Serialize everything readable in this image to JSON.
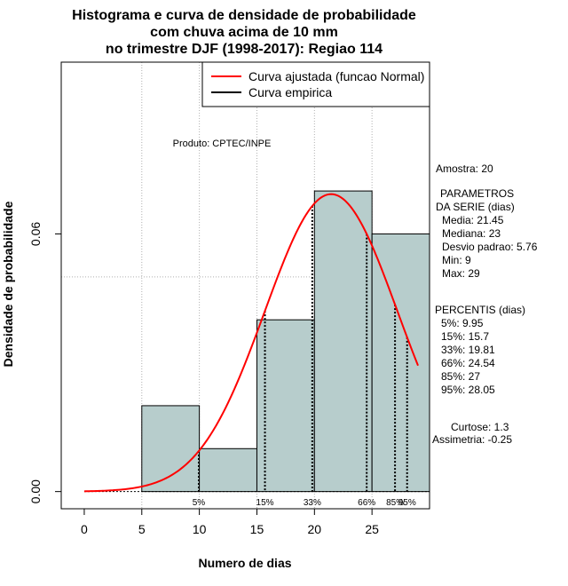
{
  "chart_data": {
    "type": "bar",
    "title_lines": [
      "Histograma e curva de densidade de probabilidade",
      "com chuva acima de 10 mm",
      "no trimestre DJF (1998-2017): Regiao 114"
    ],
    "xlabel": "Numero de dias",
    "ylabel": "Densidade de probabilidade",
    "xlim": [
      -2,
      30
    ],
    "ylim": [
      -0.004,
      0.1
    ],
    "x_ticks": [
      0,
      5,
      10,
      15,
      20,
      25
    ],
    "x_tick_labels": [
      "0",
      "5",
      "10",
      "15",
      "20",
      "25"
    ],
    "y_ticks": [
      0.0,
      0.06
    ],
    "y_tick_labels": [
      "0.00",
      "0.06"
    ],
    "grid_x": [
      5,
      10,
      15,
      20,
      25
    ],
    "grid_y": [
      0.05,
      0.1
    ],
    "bars": [
      {
        "x0": 5,
        "x1": 10,
        "density": 0.02
      },
      {
        "x0": 10,
        "x1": 15,
        "density": 0.01
      },
      {
        "x0": 15,
        "x1": 20,
        "density": 0.04
      },
      {
        "x0": 20,
        "x1": 25,
        "density": 0.07
      },
      {
        "x0": 25,
        "x1": 30,
        "density": 0.06
      }
    ],
    "normal_curve": {
      "mean": 21.45,
      "sd": 5.76,
      "x_from": 0,
      "x_to": 29,
      "color": "#ff0000"
    },
    "percentile_lines": [
      {
        "label": "5%",
        "x": 9.95
      },
      {
        "label": "15%",
        "x": 15.7
      },
      {
        "label": "33%",
        "x": 19.81
      },
      {
        "label": "66%",
        "x": 24.54
      },
      {
        "label": "85%",
        "x": 27
      },
      {
        "label": "95%",
        "x": 28.05
      }
    ],
    "legend": [
      {
        "label": "Curva ajustada (funcao Normal)",
        "color": "#ff0000"
      },
      {
        "label": "Curva empirica",
        "color": "#000000"
      }
    ],
    "legend_position": "top-right",
    "bar_color": "#b7cdcc",
    "product_label": "Produto: CPTEC/INPE"
  },
  "stats_panel": {
    "sample": "Amostra: 20",
    "params_heading_1": "PARAMETROS",
    "params_heading_2": "DA SERIE (dias)",
    "params": [
      "Media: 21.45",
      "Mediana: 23",
      "Desvio padrao: 5.76",
      "Min: 9",
      "Max: 29"
    ],
    "percentis_heading": "PERCENTIS (dias)",
    "percentis": [
      "5%: 9.95",
      "15%: 15.7",
      "33%: 19.81",
      "66%: 24.54",
      "85%: 27",
      "95%: 28.05"
    ],
    "kurtosis": "Curtose: 1.3",
    "skewness": "Assimetria: -0.25"
  }
}
